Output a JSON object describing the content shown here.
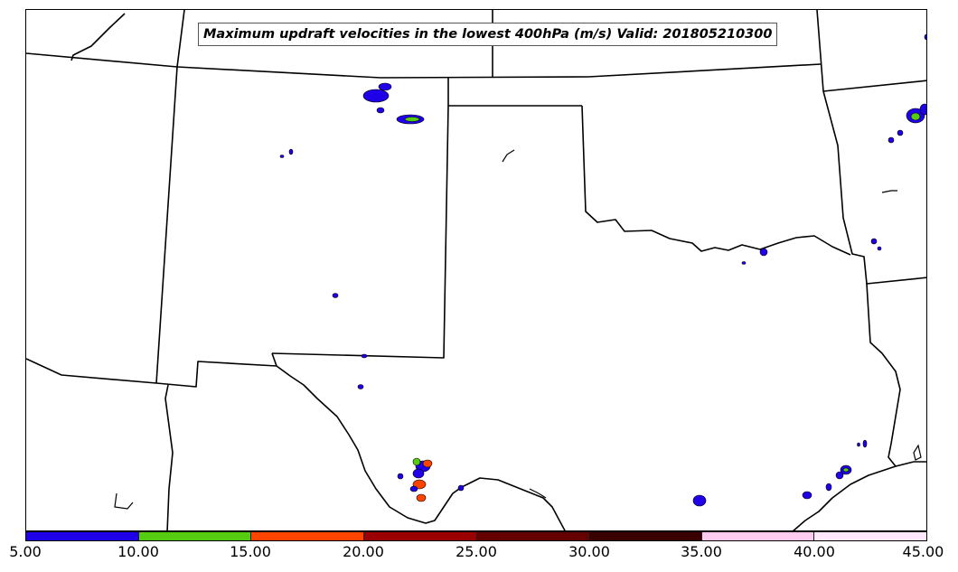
{
  "title": "Maximum updraft velocities in the lowest 400hPa (m/s) Valid: 201805210300",
  "colorbar": {
    "colors": [
      "#1f00e8",
      "#55cc11",
      "#ff4400",
      "#9a0000",
      "#650000",
      "#3a0000",
      "#ffccf0",
      "#ffe8fb"
    ],
    "ticks": [
      "5.00",
      "10.00",
      "15.00",
      "20.00",
      "25.00",
      "30.00",
      "35.00",
      "40.00",
      "45.00"
    ]
  },
  "legend_labels": {
    "range_1": "5.00–10.00",
    "range_2": "10.00–15.00",
    "range_3": "15.00–20.00",
    "range_4": "20.00–25.00",
    "range_5": "25.00–30.00",
    "range_6": "30.00–35.00",
    "range_7": "35.00–40.00",
    "range_8": "40.00–45.00"
  }
}
